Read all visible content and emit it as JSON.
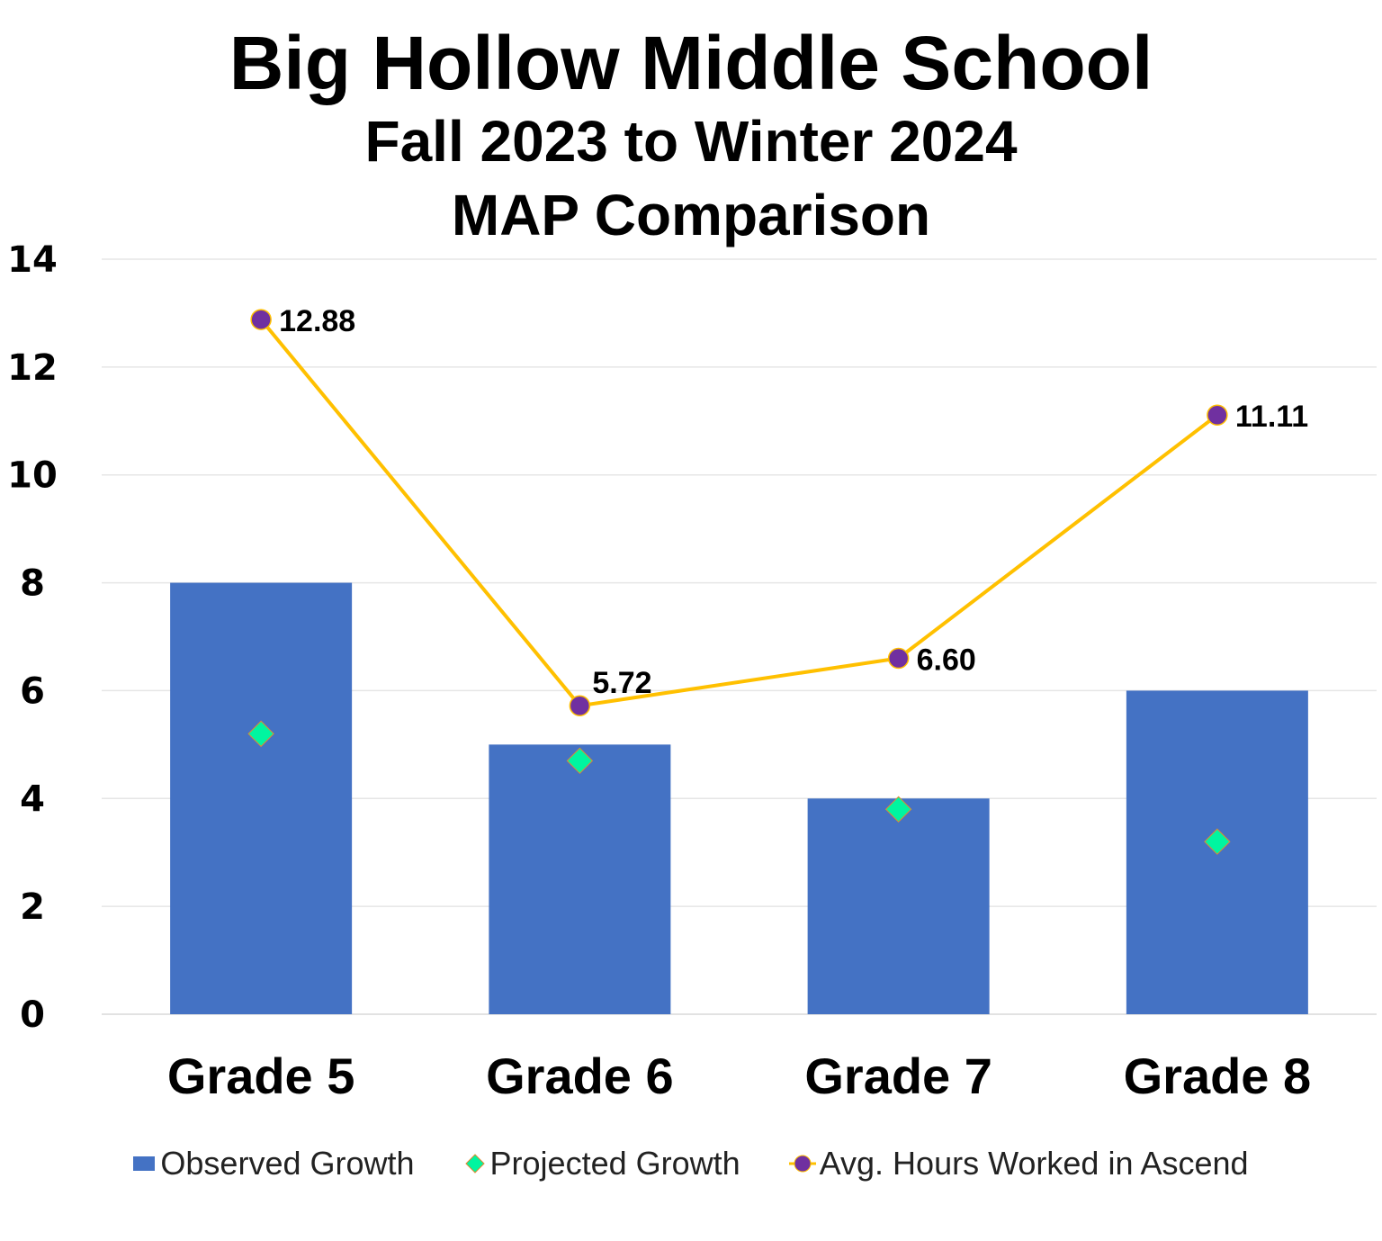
{
  "chart_data": {
    "type": "bar",
    "title": "Big Hollow Middle School",
    "subtitle_lines": [
      "Fall 2023 to Winter 2024",
      "MAP  Comparison"
    ],
    "categories": [
      "Grade 5",
      "Grade 6",
      "Grade 7",
      "Grade 8"
    ],
    "ylim": [
      0,
      14
    ],
    "yticks": [
      0,
      2,
      4,
      6,
      8,
      10,
      12,
      14
    ],
    "grid": true,
    "legend_position": "bottom",
    "series": [
      {
        "name": "Observed Growth",
        "kind": "bar",
        "color": "#4472C4",
        "values": [
          8,
          5,
          4,
          6
        ]
      },
      {
        "name": "Projected Growth",
        "kind": "marker-diamond",
        "color": "#00F5A0",
        "values": [
          5.2,
          4.7,
          3.8,
          3.2
        ]
      },
      {
        "name": "Avg. Hours Worked in Ascend",
        "kind": "line",
        "color": "#FFC000",
        "marker_color": "#7030A0",
        "values": [
          12.88,
          5.72,
          6.6,
          11.11
        ],
        "labels": [
          "12.88",
          "5.72",
          "6.60",
          "11.11"
        ]
      }
    ]
  }
}
